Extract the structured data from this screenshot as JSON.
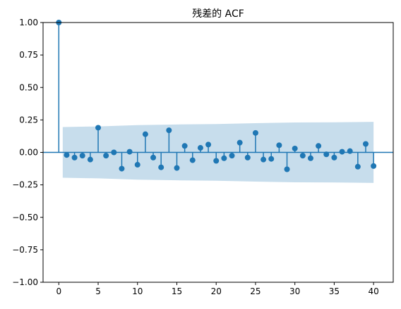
{
  "chart_data": {
    "type": "scatter",
    "subtype": "stem-acf",
    "title": "残差的 ACF",
    "xlabel": "",
    "ylabel": "",
    "xlim": [
      -2,
      42.5
    ],
    "ylim": [
      -1.0,
      1.0
    ],
    "x_ticks": [
      0,
      5,
      10,
      15,
      20,
      25,
      30,
      35,
      40
    ],
    "x_tick_labels": [
      "0",
      "5",
      "10",
      "15",
      "20",
      "25",
      "30",
      "35",
      "40"
    ],
    "y_ticks": [
      -1.0,
      -0.75,
      -0.5,
      -0.25,
      0.0,
      0.25,
      0.5,
      0.75,
      1.0
    ],
    "y_tick_labels": [
      "−1.00",
      "−0.75",
      "−0.50",
      "−0.25",
      "0.00",
      "0.25",
      "0.50",
      "0.75",
      "1.00"
    ],
    "grid": false,
    "legend": "none",
    "colors": {
      "stem": "#1f77b4",
      "marker": "#1f77b4",
      "confidence_band": "#1f77b4",
      "confidence_band_alpha": 0.25,
      "zero_line": "#1f77b4"
    },
    "lags": [
      0,
      1,
      2,
      3,
      4,
      5,
      6,
      7,
      8,
      9,
      10,
      11,
      12,
      13,
      14,
      15,
      16,
      17,
      18,
      19,
      20,
      21,
      22,
      23,
      24,
      25,
      26,
      27,
      28,
      29,
      30,
      31,
      32,
      33,
      34,
      35,
      36,
      37,
      38,
      39,
      40
    ],
    "acf": [
      1.0,
      -0.02,
      -0.04,
      -0.025,
      -0.055,
      0.19,
      -0.025,
      0.0,
      -0.125,
      0.005,
      -0.095,
      0.14,
      -0.04,
      -0.115,
      0.17,
      -0.12,
      0.05,
      -0.06,
      0.035,
      0.06,
      -0.065,
      -0.045,
      -0.025,
      0.075,
      -0.04,
      0.15,
      -0.055,
      -0.05,
      0.055,
      -0.13,
      0.03,
      -0.025,
      -0.045,
      0.05,
      -0.015,
      -0.04,
      0.005,
      0.01,
      -0.11,
      0.065,
      -0.105
    ],
    "confidence_band": {
      "lags": [
        0.5,
        5,
        10,
        15,
        20,
        25,
        30,
        35,
        40
      ],
      "upper": [
        0.195,
        0.2,
        0.21,
        0.215,
        0.218,
        0.225,
        0.23,
        0.232,
        0.235
      ],
      "lower": [
        -0.195,
        -0.2,
        -0.21,
        -0.215,
        -0.218,
        -0.225,
        -0.23,
        -0.232,
        -0.235
      ]
    }
  }
}
